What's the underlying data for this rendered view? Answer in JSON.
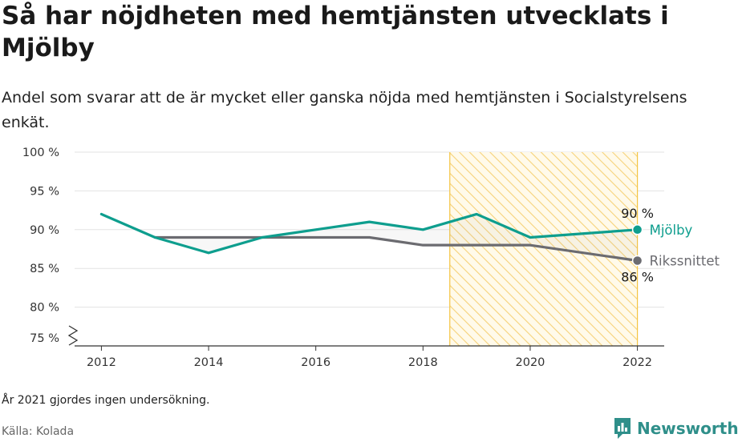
{
  "header": {
    "title": "Så har nöjdheten med hemtjänsten utvecklats i Mjölby",
    "subtitle": "Andel som svarar att de är mycket eller ganska nöjda med hemtjänsten i Socialstyrelsens enkät."
  },
  "footer": {
    "note": "År 2021 gjordes ingen undersökning.",
    "source": "Källa: Kolada",
    "brand": "Newsworthy"
  },
  "colors": {
    "mjolby": "#0e9e8e",
    "riket": "#6b6b70",
    "highlight": "#f4c542",
    "grid": "#e3e3e3",
    "brand": "#2f8f8a"
  },
  "chart_data": {
    "type": "line",
    "x": [
      2012,
      2013,
      2014,
      2015,
      2016,
      2017,
      2018,
      2019,
      2020,
      2022
    ],
    "xticks": [
      2012,
      2014,
      2016,
      2018,
      2020,
      2022
    ],
    "xtick_labels": [
      "2012",
      "2014",
      "2016",
      "2018",
      "2020",
      "2022"
    ],
    "xlim": [
      2011.5,
      2022.5
    ],
    "yticks": [
      75,
      80,
      85,
      90,
      95,
      100
    ],
    "ytick_labels": [
      "75 %",
      "80 %",
      "85 %",
      "90 %",
      "95 %",
      "100 %"
    ],
    "ylim": [
      75,
      100
    ],
    "y_axis_break": true,
    "grid": true,
    "highlight_range": [
      2018.5,
      2022
    ],
    "series": [
      {
        "name": "Mjölby",
        "values": [
          92,
          89,
          87,
          89,
          90,
          91,
          90,
          92,
          89,
          90
        ],
        "end_label": "90 %"
      },
      {
        "name": "Rikssnittet",
        "values": [
          null,
          89,
          89,
          89,
          89,
          89,
          88,
          88,
          88,
          86
        ],
        "end_label": "86 %"
      }
    ]
  }
}
